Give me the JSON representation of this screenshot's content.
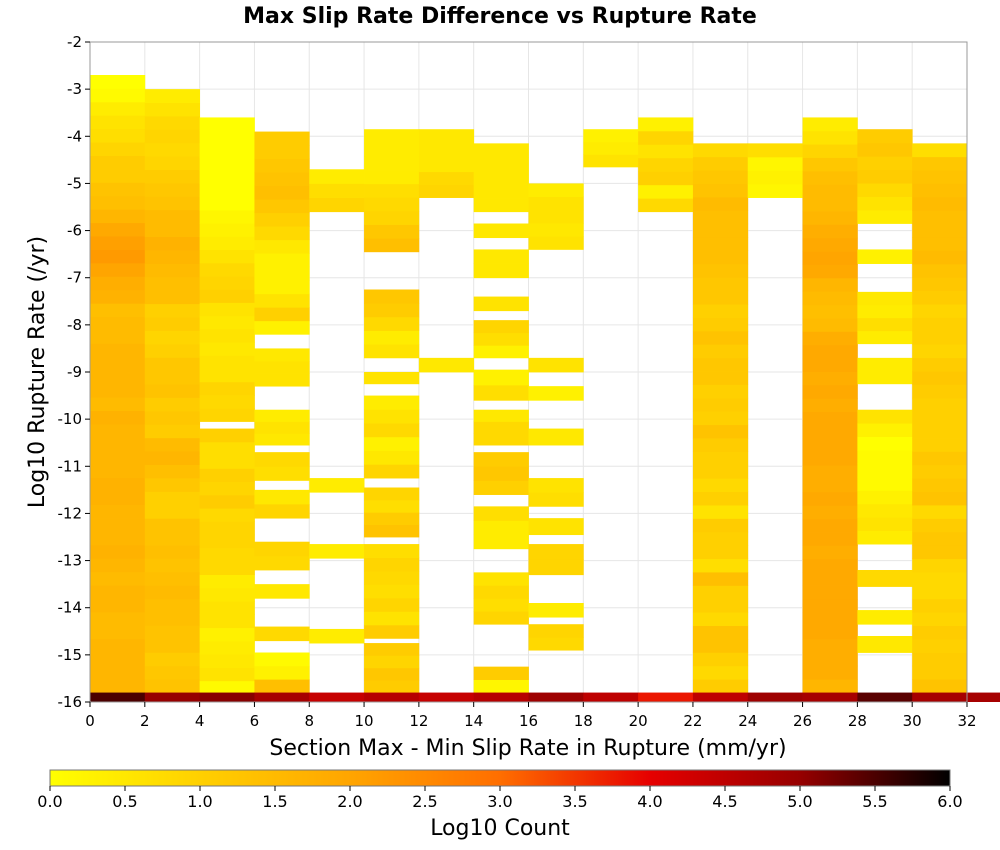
{
  "chart_data": {
    "type": "heatmap",
    "title": "Max Slip Rate Difference vs Rupture Rate",
    "xlabel": "Section Max - Min Slip Rate in Rupture (mm/yr)",
    "ylabel": "Log10 Rupture Rate (/yr)",
    "colorbar_label": "Log10 Count",
    "xlim": [
      0,
      32
    ],
    "ylim": [
      -16,
      -2
    ],
    "x_ticks": [
      "0",
      "2",
      "4",
      "6",
      "8",
      "10",
      "12",
      "14",
      "16",
      "18",
      "20",
      "22",
      "24",
      "26",
      "28",
      "30",
      "32"
    ],
    "y_ticks": [
      "-2",
      "-3",
      "-4",
      "-5",
      "-6",
      "-7",
      "-8",
      "-9",
      "-10",
      "-11",
      "-12",
      "-13",
      "-14",
      "-15",
      "-16"
    ],
    "colorbar_ticks": [
      "0.0",
      "0.5",
      "1.0",
      "1.5",
      "2.0",
      "2.5",
      "3.0",
      "3.5",
      "4.0",
      "4.5",
      "5.0",
      "5.5",
      "6.0"
    ],
    "color_range": [
      0,
      6
    ],
    "grid": true,
    "colorbar_placement": "bottom",
    "colormap": [
      "#ffff00",
      "#ffd000",
      "#ffa500",
      "#ff6e00",
      "#e60000",
      "#960000",
      "#000000"
    ],
    "x_bin_width": 2,
    "y_bin_height": 0.2857,
    "bottom_row_y": -16,
    "bottom_row_values": [
      5.5,
      5.0,
      5.1,
      4.8,
      4.4,
      4.6,
      4.4,
      4.6,
      4.9,
      4.5,
      3.8,
      4.5,
      4.9,
      4.8,
      5.4,
      4.8,
      4.8
    ],
    "columns": [
      {
        "x": 0,
        "ranges": [
          [
            -15.8,
            -2.7
          ]
        ],
        "values": [
          1.6,
          1.6,
          1.6,
          1.6,
          1.5,
          1.5,
          1.6,
          1.6,
          1.5,
          1.6,
          1.7,
          1.6,
          1.6,
          1.6,
          1.7,
          1.7,
          1.6,
          1.6,
          1.6,
          1.6,
          1.7,
          1.5,
          1.6,
          1.6,
          1.6,
          1.6,
          1.5,
          1.5,
          1.4,
          1.7,
          1.8,
          2.0,
          2.2,
          2.1,
          1.9,
          1.6,
          1.4,
          1.3,
          1.1,
          1.1,
          0.9,
          0.7,
          0.6,
          0.4,
          0.1,
          0.0
        ]
      },
      {
        "x": 2,
        "ranges": [
          [
            -15.8,
            -3.0
          ]
        ],
        "values": [
          1.3,
          1.2,
          1.1,
          1.3,
          1.3,
          1.4,
          1.4,
          1.5,
          1.4,
          1.3,
          1.4,
          1.3,
          1.3,
          1.0,
          1.0,
          1.2,
          1.4,
          1.6,
          1.5,
          1.1,
          1.2,
          1.1,
          1.3,
          1.2,
          1.2,
          1.0,
          0.9,
          1.1,
          1.0,
          1.4,
          1.4,
          1.5,
          1.6,
          1.7,
          1.5,
          1.5,
          1.3,
          1.2,
          1.1,
          0.9,
          0.8,
          0.9,
          0.8,
          0.6,
          0.4
        ]
      },
      {
        "x": 4,
        "ranges": [
          [
            -15.8,
            -15.55
          ],
          [
            -15.55,
            -10.2
          ],
          [
            -10.05,
            -3.6
          ]
        ],
        "values": [
          0.1,
          0.6,
          0.5,
          0.4,
          0.3,
          0.6,
          0.6,
          0.5,
          0.4,
          0.8,
          0.8,
          0.9,
          0.9,
          0.8,
          1.1,
          0.9,
          1.0,
          0.7,
          0.7,
          1.0,
          0.9,
          0.8,
          0.9,
          0.6,
          0.6,
          0.5,
          0.6,
          0.5,
          0.6,
          1.0,
          0.9,
          0.8,
          0.6,
          0.4,
          0.3,
          0.2,
          0.0
        ]
      },
      {
        "x": 6,
        "ranges": [
          [
            -15.8,
            -14.95
          ],
          [
            -14.7,
            -14.4
          ],
          [
            -13.8,
            -13.5
          ],
          [
            -13.2,
            -12.6
          ],
          [
            -12.1,
            -11.5
          ],
          [
            -11.3,
            -10.7
          ],
          [
            -10.55,
            -9.8
          ],
          [
            -9.3,
            -8.5
          ],
          [
            -8.2,
            -3.9
          ]
        ],
        "values": [
          1.4,
          0.3,
          0.1,
          0.8,
          0.5,
          0.8,
          0.9,
          0.9,
          0.5,
          0.7,
          0.8,
          0.5,
          0.6,
          0.4,
          0.6,
          0.6,
          0.5,
          0.3,
          1.0,
          0.6,
          0.3,
          0.3,
          0.3,
          0.5,
          0.8,
          1.0,
          1.2,
          1.4,
          1.3,
          1.2,
          1.1
        ]
      },
      {
        "x": 8,
        "ranges": [
          [
            -14.75,
            -14.45
          ],
          [
            -12.95,
            -12.65
          ],
          [
            -11.55,
            -11.25
          ],
          [
            -5.6,
            -4.7
          ]
        ],
        "values": [
          0.4,
          0.4,
          0.4,
          0.9,
          0.7,
          0.4
        ]
      },
      {
        "x": 10,
        "ranges": [
          [
            -15.8,
            -14.75
          ],
          [
            -14.65,
            -12.65
          ],
          [
            -12.5,
            -11.45
          ],
          [
            -11.25,
            -9.5
          ],
          [
            -9.25,
            -9.0
          ],
          [
            -8.7,
            -7.25
          ],
          [
            -6.45,
            -3.85
          ]
        ],
        "values": [
          1.1,
          1.2,
          0.9,
          1.1,
          1.1,
          0.6,
          0.9,
          0.7,
          0.8,
          0.9,
          0.7,
          1.3,
          1.1,
          0.7,
          0.9,
          0.9,
          0.5,
          0.3,
          0.8,
          0.6,
          0.4,
          0.6,
          0.6,
          0.4,
          0.8,
          1.1,
          1.2,
          1.4,
          1.2,
          0.9,
          0.8,
          0.7,
          0.4
        ]
      },
      {
        "x": 12,
        "ranges": [
          [
            -9.0,
            -8.7
          ],
          [
            -5.3,
            -4.2
          ],
          [
            -4.2,
            -3.85
          ]
        ],
        "values": [
          0.5,
          0.9,
          0.8,
          0.5
        ]
      },
      {
        "x": 14,
        "ranges": [
          [
            -15.8,
            -15.25
          ],
          [
            -14.35,
            -13.25
          ],
          [
            -12.75,
            -11.85
          ],
          [
            -11.6,
            -10.7
          ],
          [
            -10.55,
            -9.8
          ],
          [
            -9.6,
            -8.95
          ],
          [
            -8.7,
            -7.9
          ],
          [
            -7.7,
            -7.4
          ],
          [
            -7.0,
            -6.4
          ],
          [
            -6.15,
            -5.85
          ],
          [
            -5.6,
            -4.15
          ]
        ],
        "values": [
          0.2,
          1.1,
          0.9,
          0.7,
          0.8,
          0.6,
          0.4,
          0.4,
          0.7,
          1.0,
          1.2,
          1.1,
          0.8,
          0.8,
          0.5,
          0.7,
          0.3,
          0.3,
          0.7,
          0.9,
          0.6,
          0.5
        ]
      },
      {
        "x": 16,
        "ranges": [
          [
            -14.9,
            -14.35
          ],
          [
            -14.2,
            -13.9
          ],
          [
            -13.3,
            -12.65
          ],
          [
            -12.45,
            -12.1
          ],
          [
            -11.85,
            -11.25
          ],
          [
            -10.55,
            -10.2
          ],
          [
            -9.6,
            -9.3
          ],
          [
            -9.0,
            -8.7
          ],
          [
            -6.4,
            -5.0
          ]
        ],
        "values": [
          0.8,
          0.9,
          0.4,
          0.9,
          0.9,
          0.6,
          0.7,
          0.6,
          0.5,
          0.3,
          0.6,
          0.6,
          0.5,
          0.6,
          0.6,
          0.4,
          0.7
        ]
      },
      {
        "x": 18,
        "ranges": [
          [
            -4.65,
            -3.85
          ]
        ],
        "values": [
          0.6,
          0.4,
          0.3
        ]
      },
      {
        "x": 20,
        "ranges": [
          [
            -5.6,
            -3.6
          ]
        ],
        "values": [
          0.8,
          0.3,
          1.0,
          0.9,
          0.6,
          0.9,
          0.3
        ]
      },
      {
        "x": 22,
        "ranges": [
          [
            -15.8,
            -4.15
          ]
        ],
        "values": [
          1.1,
          0.8,
          1.0,
          1.3,
          1.3,
          0.8,
          1.0,
          1.0,
          1.4,
          0.7,
          1.0,
          1.0,
          1.1,
          0.6,
          1.0,
          0.8,
          1.0,
          1.0,
          1.1,
          1.3,
          1.0,
          1.1,
          1.0,
          1.2,
          1.2,
          1.1,
          1.3,
          1.1,
          1.0,
          1.2,
          1.2,
          1.3,
          1.4,
          1.4,
          1.4,
          1.4,
          1.5,
          1.3,
          1.2,
          1.1,
          0.8
        ]
      },
      {
        "x": 24,
        "ranges": [
          [
            -5.3,
            -4.15
          ]
        ],
        "values": [
          0.2,
          0.3,
          0.2,
          0.7
        ]
      },
      {
        "x": 26,
        "ranges": [
          [
            -15.8,
            -3.6
          ]
        ],
        "values": [
          1.6,
          1.8,
          1.8,
          1.8,
          1.9,
          1.9,
          1.9,
          1.9,
          1.9,
          1.9,
          1.8,
          1.9,
          1.9,
          1.8,
          1.9,
          1.8,
          1.8,
          1.9,
          1.9,
          1.9,
          1.9,
          1.8,
          1.9,
          1.8,
          1.9,
          1.9,
          1.8,
          1.5,
          1.4,
          1.5,
          1.6,
          1.9,
          2.0,
          1.9,
          1.8,
          1.6,
          1.5,
          1.5,
          1.4,
          1.2,
          0.9,
          0.6,
          0.4
        ]
      },
      {
        "x": 28,
        "ranges": [
          [
            -14.95,
            -14.6
          ],
          [
            -14.35,
            -14.05
          ],
          [
            -13.55,
            -13.2
          ],
          [
            -12.65,
            -9.8
          ],
          [
            -9.25,
            -8.7
          ],
          [
            -8.4,
            -7.3
          ],
          [
            -6.7,
            -6.4
          ],
          [
            -5.85,
            -3.85
          ]
        ],
        "values": [
          0.5,
          0.4,
          0.8,
          0.4,
          0.6,
          0.5,
          0.3,
          0.1,
          0.1,
          0.1,
          0.0,
          0.3,
          0.6,
          0.4,
          0.4,
          0.4,
          0.7,
          0.4,
          0.5,
          0.3,
          0.4,
          0.6,
          0.8,
          1.1,
          1.0,
          1.2,
          1.1,
          1.0
        ]
      },
      {
        "x": 30,
        "ranges": [
          [
            -15.8,
            -4.15
          ]
        ],
        "values": [
          1.3,
          1.1,
          1.1,
          1.0,
          1.1,
          0.9,
          1.0,
          0.8,
          0.8,
          0.9,
          1.2,
          1.2,
          1.1,
          0.8,
          1.3,
          1.2,
          1.1,
          1.2,
          1.0,
          1.0,
          1.0,
          1.0,
          1.1,
          1.2,
          1.1,
          0.9,
          1.0,
          1.0,
          0.9,
          1.1,
          1.2,
          1.3,
          1.5,
          1.4,
          1.4,
          1.4,
          1.5,
          1.4,
          1.3,
          1.2,
          0.7
        ]
      }
    ]
  }
}
